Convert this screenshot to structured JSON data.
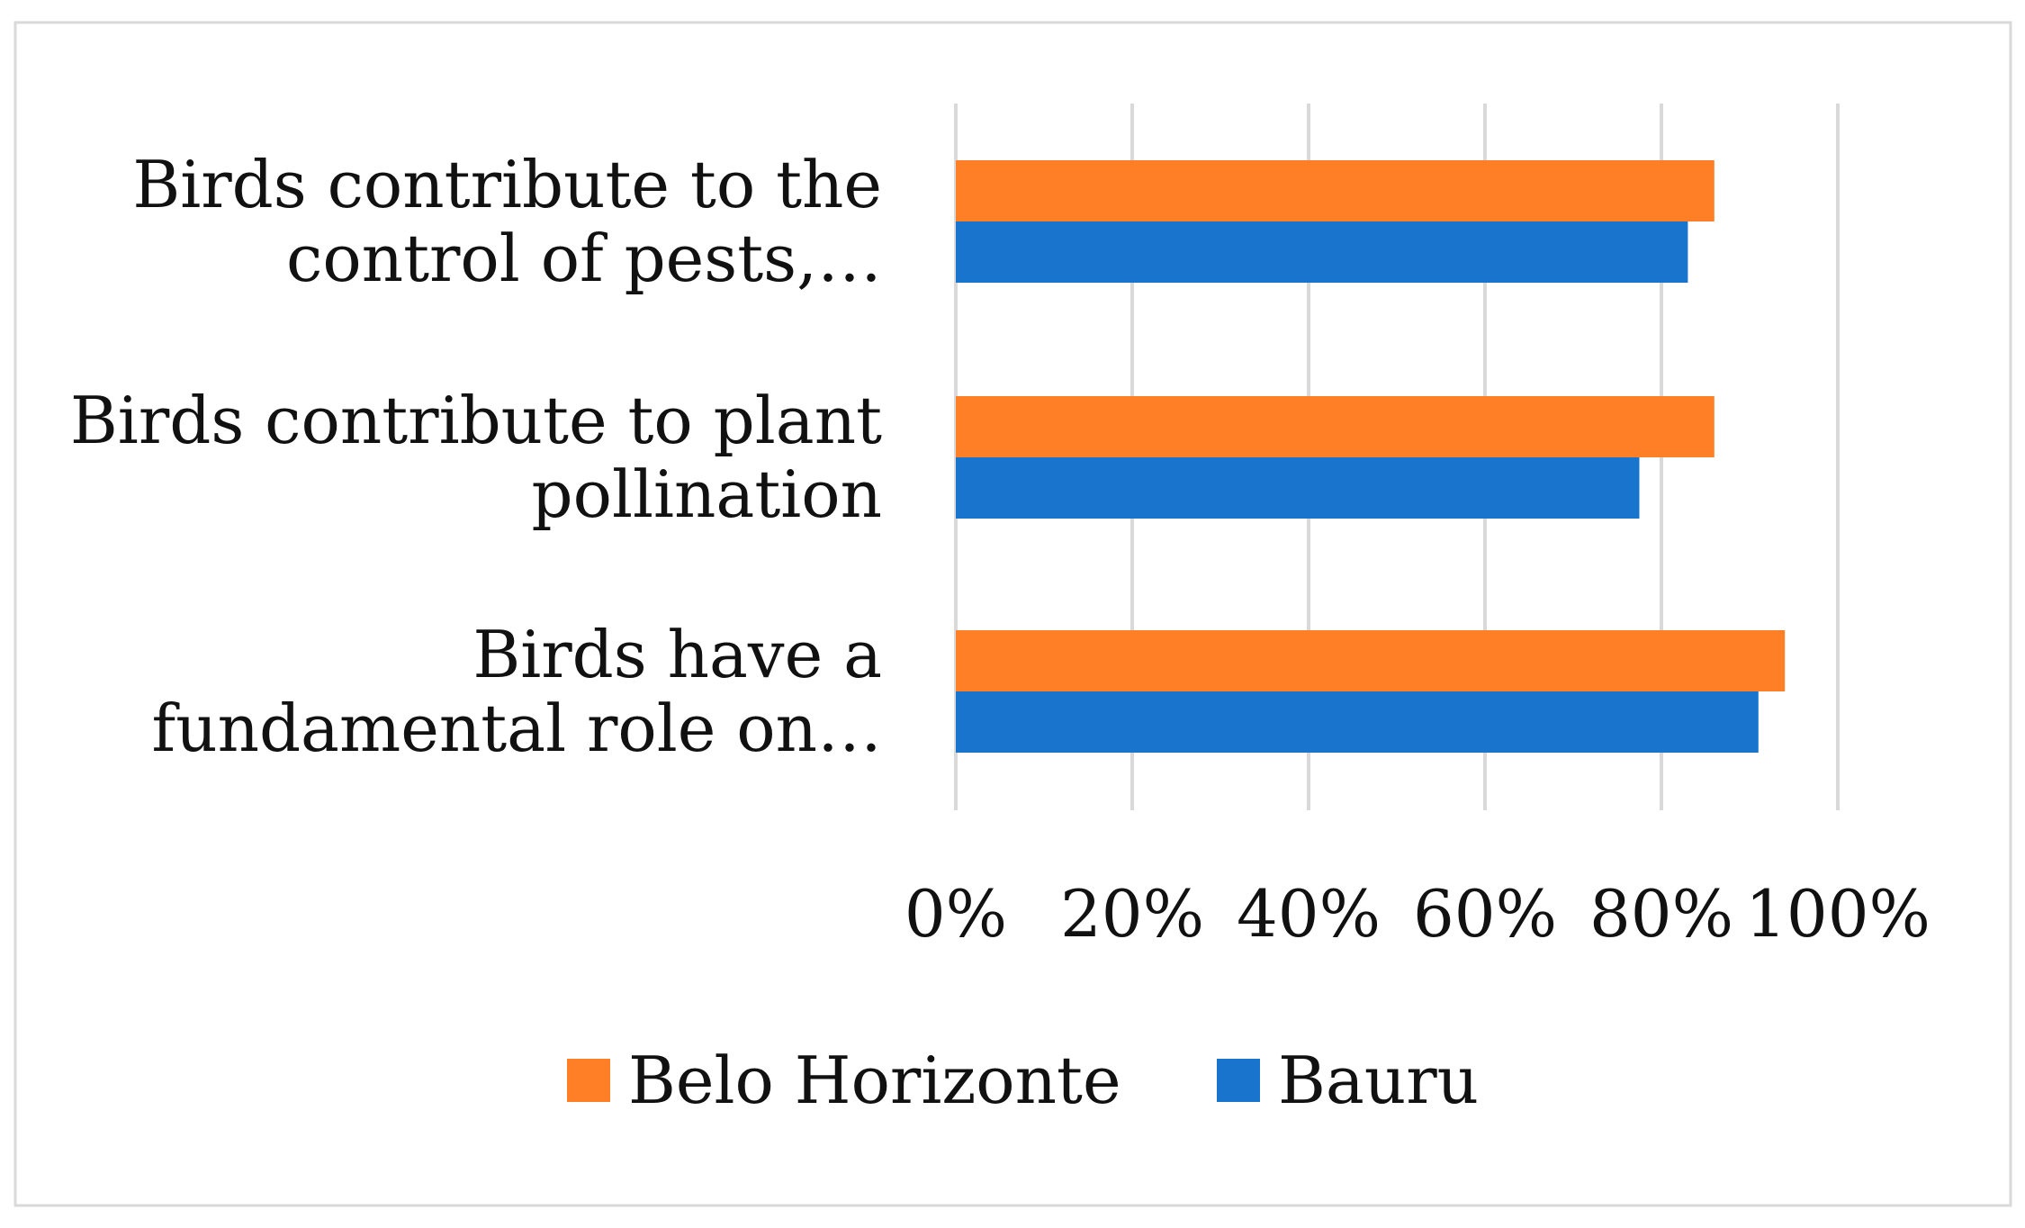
{
  "chart_data": {
    "type": "bar",
    "orientation": "horizontal",
    "categories": [
      [
        "Birds contribute to the",
        "control of pests,…"
      ],
      [
        "Birds contribute to plant",
        "pollination"
      ],
      [
        "Birds have a",
        "fundamental role on…"
      ]
    ],
    "series": [
      {
        "name": "Belo Horizonte",
        "color": "#FF7F27",
        "values": [
          0.86,
          0.86,
          0.94
        ]
      },
      {
        "name": "Bauru",
        "color": "#1874CD",
        "values": [
          0.83,
          0.775,
          0.91
        ]
      }
    ],
    "x_ticks": [
      "0%",
      "20%",
      "40%",
      "60%",
      "80%",
      "100%"
    ],
    "xlim": [
      0,
      1
    ],
    "grid": true,
    "legend_position": "bottom"
  }
}
